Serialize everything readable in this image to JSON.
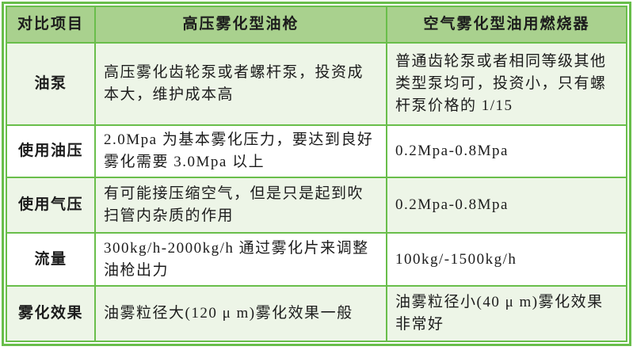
{
  "table": {
    "headers": [
      "对比项目",
      "高压雾化型油枪",
      "空气雾化型油用燃烧器"
    ],
    "rows": [
      {
        "label": "油泵",
        "gun": "高压雾化齿轮泵或者螺杆泵，投资成本大，维护成本高",
        "burner": "普通齿轮泵或者相同等级其他类型泵均可，投资小，只有螺杆泵价格的 1/15"
      },
      {
        "label": "使用油压",
        "gun": "2.0Mpa 为基本雾化压力，要达到良好雾化需要 3.0Mpa 以上",
        "burner": "0.2Mpa-0.8Mpa"
      },
      {
        "label": "使用气压",
        "gun": "有可能接压缩空气，但是只是起到吹扫管内杂质的作用",
        "burner": "0.2Mpa-0.8Mpa"
      },
      {
        "label": "流量",
        "gun": "300kg/h-2000kg/h 通过雾化片来调整油枪出力",
        "burner": "100kg/-1500kg/h"
      },
      {
        "label": "雾化效果",
        "gun": "油雾粒径大(120 μ m)雾化效果一般",
        "burner": "油雾粒径小(40 μ m)雾化效果非常好"
      }
    ],
    "colors": {
      "header_bg": "#a9d18e",
      "row_alt_bg": "#edf5e7",
      "row_plain_bg": "#ffffff",
      "border": "#69be4b",
      "text": "#1c1c1c"
    }
  }
}
